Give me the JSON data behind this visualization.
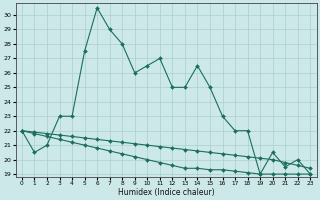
{
  "xlabel": "Humidex (Indice chaleur)",
  "background_color": "#cce8e8",
  "grid_color": "#aacfcf",
  "line_color": "#1a6e5e",
  "xlim": [
    -0.5,
    23.5
  ],
  "ylim": [
    18.8,
    30.8
  ],
  "yticks": [
    19,
    20,
    21,
    22,
    23,
    24,
    25,
    26,
    27,
    28,
    29,
    30
  ],
  "xticks": [
    0,
    1,
    2,
    3,
    4,
    5,
    6,
    7,
    8,
    9,
    10,
    11,
    12,
    13,
    14,
    15,
    16,
    17,
    18,
    19,
    20,
    21,
    22,
    23
  ],
  "series1": [
    22.0,
    20.5,
    21.0,
    23.0,
    23.0,
    27.5,
    30.5,
    29.0,
    28.0,
    26.0,
    26.5,
    27.0,
    25.0,
    25.0,
    26.5,
    25.0,
    23.0,
    22.0,
    22.0,
    19.0,
    20.5,
    19.5,
    20.0,
    19.0
  ],
  "series2": [
    22.0,
    21.8,
    21.6,
    21.4,
    21.2,
    21.0,
    20.8,
    20.6,
    20.4,
    20.2,
    20.0,
    19.8,
    19.6,
    19.4,
    19.4,
    19.3,
    19.3,
    19.2,
    19.1,
    19.0,
    19.0,
    19.0,
    19.0,
    19.0
  ],
  "series3": [
    22.0,
    21.9,
    21.8,
    21.7,
    21.6,
    21.5,
    21.4,
    21.3,
    21.2,
    21.1,
    21.0,
    20.9,
    20.8,
    20.7,
    20.6,
    20.5,
    20.4,
    20.3,
    20.2,
    20.1,
    20.0,
    19.8,
    19.6,
    19.4
  ]
}
